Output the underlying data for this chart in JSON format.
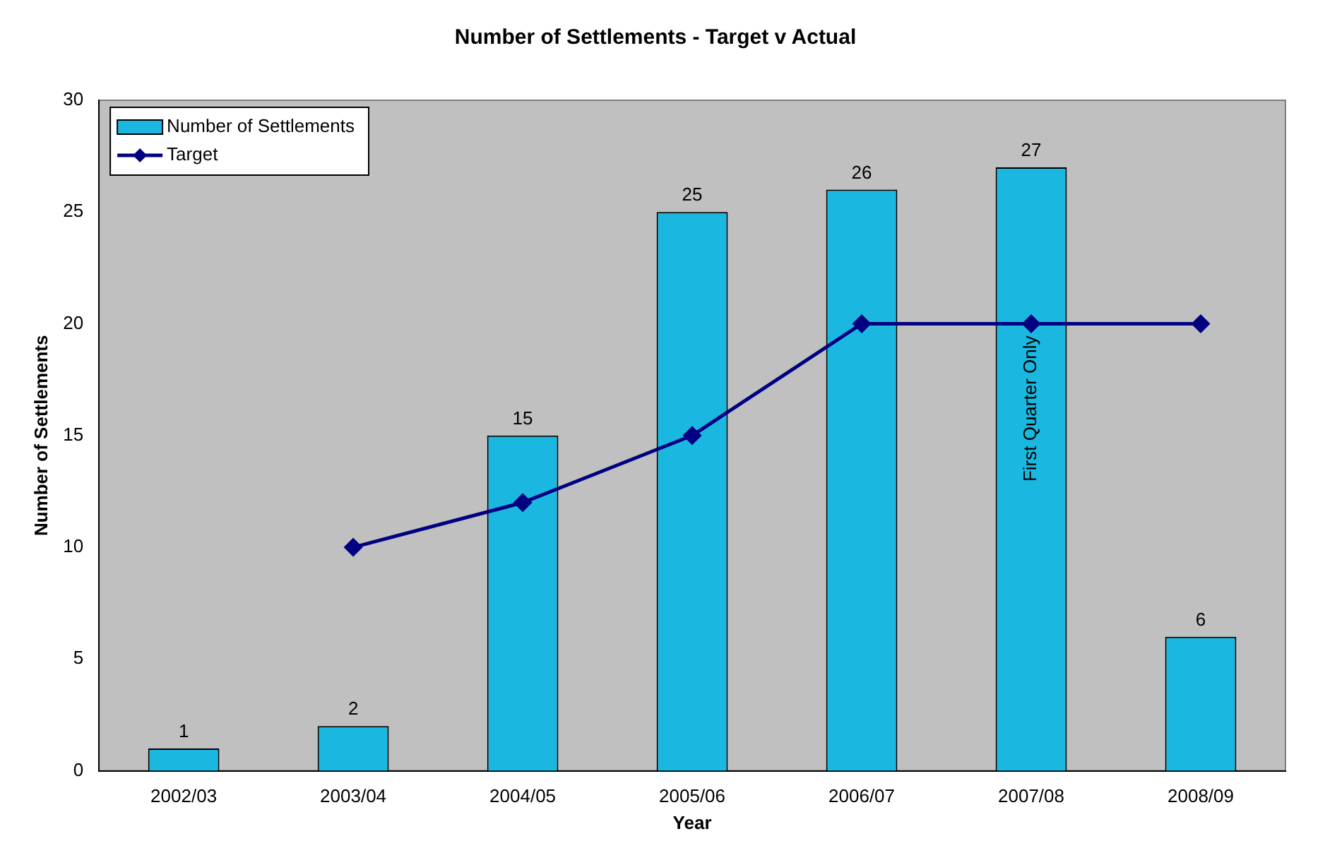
{
  "chart_data": {
    "type": "bar",
    "title": "Number of Settlements - Target v Actual",
    "xlabel": "Year",
    "ylabel": "Number of Settlements",
    "categories": [
      "2002/03",
      "2003/04",
      "2004/05",
      "2005/06",
      "2006/07",
      "2007/08",
      "2008/09"
    ],
    "series": [
      {
        "name": "Number of Settlements",
        "color": "#1ab8e0",
        "values": [
          1,
          2,
          15,
          25,
          26,
          27,
          6
        ],
        "value_labels": [
          "1",
          "2",
          "15",
          "25",
          "26",
          "27",
          "6"
        ]
      },
      {
        "name": "Target",
        "type": "line",
        "color": "#000080",
        "values": [
          null,
          10,
          12,
          15,
          20,
          20,
          20
        ]
      }
    ],
    "ylim": [
      0,
      30
    ],
    "yticks": [
      0,
      5,
      10,
      15,
      20,
      25,
      30
    ],
    "grid": false,
    "legend": "top left",
    "marker": "diamond",
    "line_style": "solid",
    "annotations": [
      "First Quarter Only"
    ]
  }
}
